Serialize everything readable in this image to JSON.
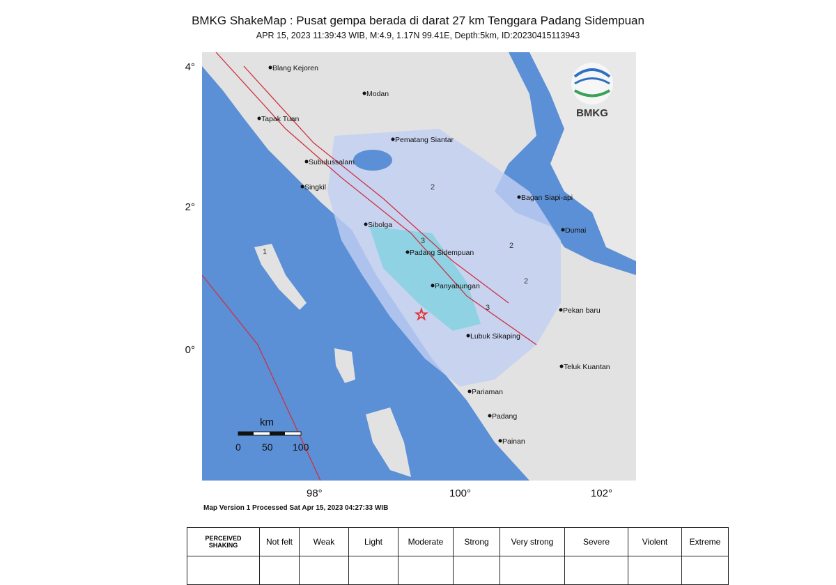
{
  "header": {
    "title": "BMKG ShakeMap : Pusat gempa berada di darat 27 km Tenggara Padang Sidempuan",
    "subtitle": "APR 15, 2023 11:39:43 WIB, M:4.9, 1.17N 99.41E, Depth:5km, ID:20230415113943"
  },
  "map": {
    "lat_ticks": [
      "4°",
      "2°",
      "0°"
    ],
    "lon_ticks": [
      "98°",
      "100°",
      "102°"
    ],
    "logo": "BMKG",
    "colors": {
      "ocean": "#5b8fd6",
      "land": "#e4e4e4",
      "shaking": "#b8c8f0",
      "epicenter": "#e03030",
      "faults": "#d03040"
    },
    "epicenter_icon": "star-icon",
    "cities": [
      {
        "name": "Blang Kejoren"
      },
      {
        "name": "Modan"
      },
      {
        "name": "Tapak Tuan"
      },
      {
        "name": "Pematang Siantar"
      },
      {
        "name": "Subulussalam"
      },
      {
        "name": "Singkil"
      },
      {
        "name": "Bagan Siapi-api"
      },
      {
        "name": "Sibolga"
      },
      {
        "name": "Dumai"
      },
      {
        "name": "Padang Sidempuan"
      },
      {
        "name": "Panyabungan"
      },
      {
        "name": "Pekan baru"
      },
      {
        "name": "Lubuk Sikaping"
      },
      {
        "name": "Teluk Kuantan"
      },
      {
        "name": "Pariaman"
      },
      {
        "name": "Padang"
      },
      {
        "name": "Painan"
      }
    ],
    "contours": [
      "2",
      "2",
      "2",
      "3",
      "3",
      "1"
    ],
    "scale": {
      "unit": "km",
      "labels": [
        "0",
        "50",
        "100"
      ]
    }
  },
  "version": "Map Version 1 Processed Sat Apr 15, 2023 04:27:33 WIB",
  "legend": {
    "header": "PERCEIVED SHAKING",
    "levels": [
      "Not felt",
      "Weak",
      "Light",
      "Moderate",
      "Strong",
      "Very strong",
      "Severe",
      "Violent",
      "Extreme"
    ]
  }
}
